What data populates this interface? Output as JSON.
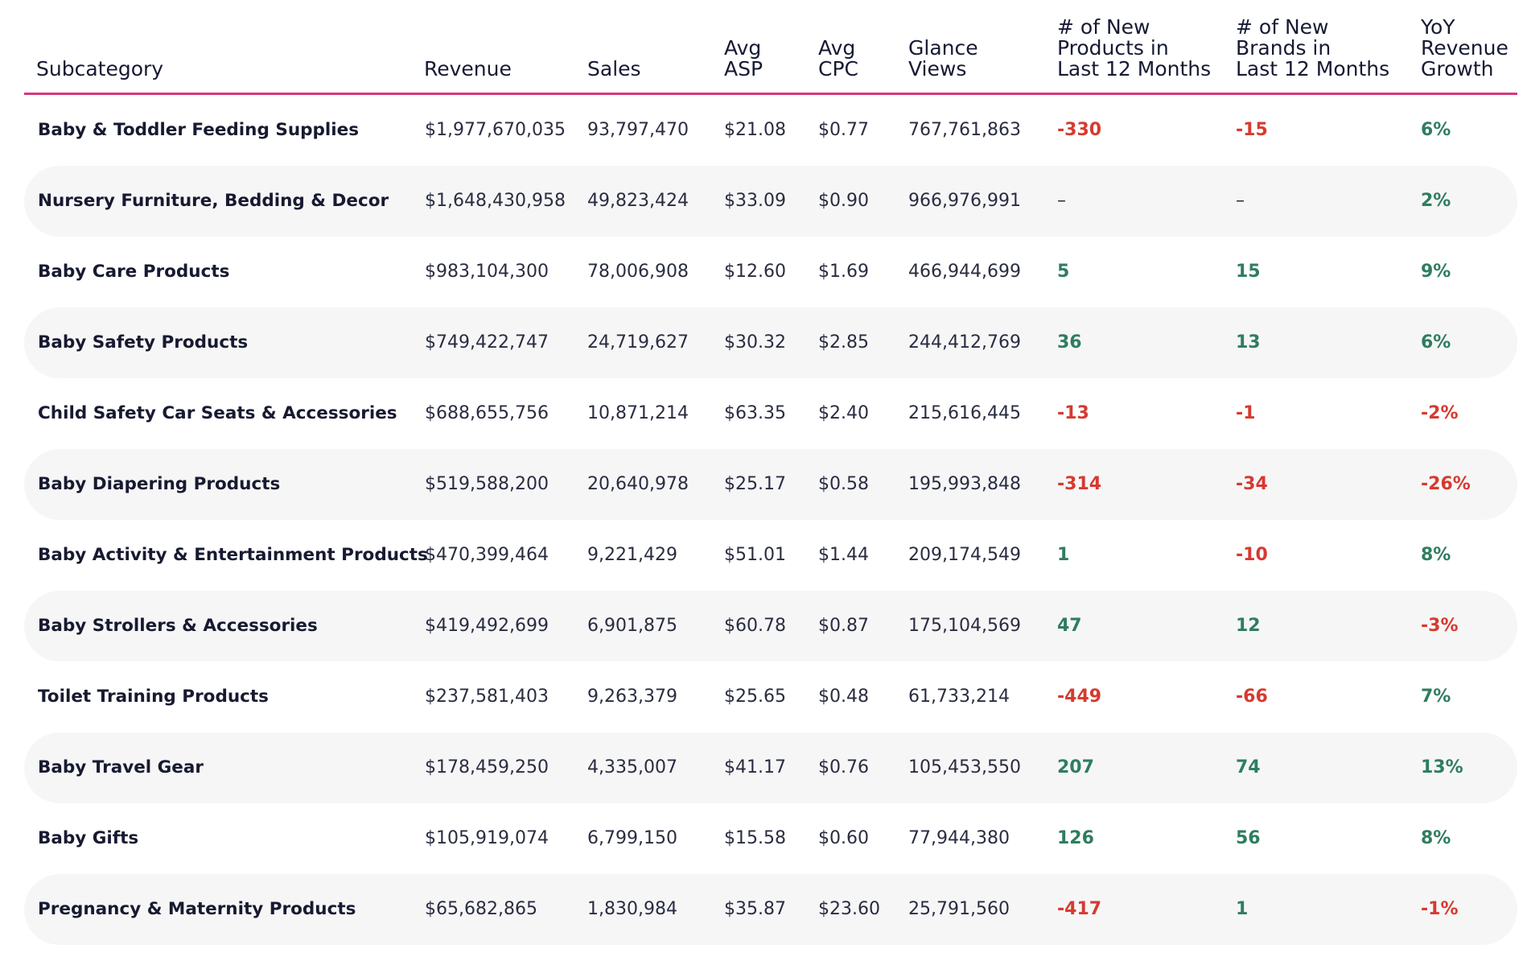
{
  "header": {
    "subcategory": "Subcategory",
    "revenue": "Revenue",
    "sales": "Sales",
    "asp": "Avg\nASP",
    "cpc": "Avg\nCPC",
    "views": "Glance\nViews",
    "new_products": "# of New\nProducts in\nLast 12 Months",
    "new_brands": "# of New\nBrands in\nLast 12 Months",
    "growth": "YoY\nRevenue\nGrowth"
  },
  "rows": [
    {
      "name": "Baby & Toddler Feeding Supplies",
      "revenue": "$1,977,670,035",
      "sales": "93,797,470",
      "asp": "$21.08",
      "cpc": "$0.77",
      "views": "767,761,863",
      "new_products": "-330",
      "new_brands": "-15",
      "growth": "6%"
    },
    {
      "name": "Nursery Furniture, Bedding & Decor",
      "revenue": "$1,648,430,958",
      "sales": "49,823,424",
      "asp": "$33.09",
      "cpc": "$0.90",
      "views": "966,976,991",
      "new_products": "–",
      "new_brands": "–",
      "growth": "2%"
    },
    {
      "name": "Baby Care Products",
      "revenue": "$983,104,300",
      "sales": "78,006,908",
      "asp": "$12.60",
      "cpc": "$1.69",
      "views": "466,944,699",
      "new_products": "5",
      "new_brands": "15",
      "growth": "9%"
    },
    {
      "name": "Baby Safety Products",
      "revenue": "$749,422,747",
      "sales": "24,719,627",
      "asp": "$30.32",
      "cpc": "$2.85",
      "views": "244,412,769",
      "new_products": "36",
      "new_brands": "13",
      "growth": "6%"
    },
    {
      "name": "Child Safety Car Seats & Accessories",
      "revenue": "$688,655,756",
      "sales": "10,871,214",
      "asp": "$63.35",
      "cpc": "$2.40",
      "views": "215,616,445",
      "new_products": "-13",
      "new_brands": "-1",
      "growth": "-2%"
    },
    {
      "name": "Baby Diapering Products",
      "revenue": "$519,588,200",
      "sales": "20,640,978",
      "asp": "$25.17",
      "cpc": "$0.58",
      "views": "195,993,848",
      "new_products": "-314",
      "new_brands": "-34",
      "growth": "-26%"
    },
    {
      "name": "Baby Activity & Entertainment Products",
      "revenue": "$470,399,464",
      "sales": "9,221,429",
      "asp": "$51.01",
      "cpc": "$1.44",
      "views": "209,174,549",
      "new_products": "1",
      "new_brands": "-10",
      "growth": "8%"
    },
    {
      "name": "Baby Strollers & Accessories",
      "revenue": "$419,492,699",
      "sales": "6,901,875",
      "asp": "$60.78",
      "cpc": "$0.87",
      "views": "175,104,569",
      "new_products": "47",
      "new_brands": "12",
      "growth": "-3%"
    },
    {
      "name": "Toilet Training Products",
      "revenue": "$237,581,403",
      "sales": "9,263,379",
      "asp": "$25.65",
      "cpc": "$0.48",
      "views": "61,733,214",
      "new_products": "-449",
      "new_brands": "-66",
      "growth": "7%"
    },
    {
      "name": "Baby Travel Gear",
      "revenue": "$178,459,250",
      "sales": "4,335,007",
      "asp": "$41.17",
      "cpc": "$0.76",
      "views": "105,453,550",
      "new_products": "207",
      "new_brands": "74",
      "growth": "13%"
    },
    {
      "name": "Baby Gifts",
      "revenue": "$105,919,074",
      "sales": "6,799,150",
      "asp": "$15.58",
      "cpc": "$0.60",
      "views": "77,944,380",
      "new_products": "126",
      "new_brands": "56",
      "growth": "8%"
    },
    {
      "name": "Pregnancy & Maternity Products",
      "revenue": "$65,682,865",
      "sales": "1,830,984",
      "asp": "$35.87",
      "cpc": "$23.60",
      "views": "25,791,560",
      "new_products": "-417",
      "new_brands": "1",
      "growth": "-1%"
    }
  ],
  "colors": {
    "accent_rule": "#d8387e",
    "negative": "#d63a30",
    "positive": "#2f7d5f",
    "row_shade": "#f6f6f7"
  }
}
